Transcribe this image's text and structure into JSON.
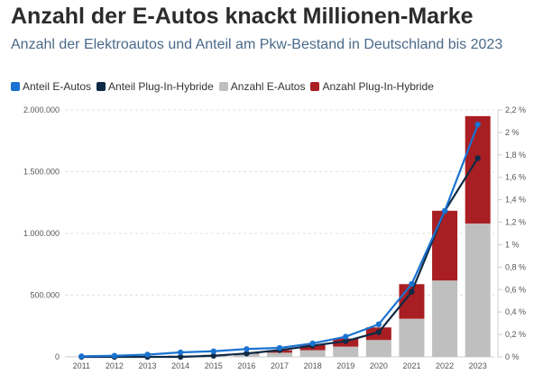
{
  "title": "Anzahl der E-Autos knackt Millionen-Marke",
  "subtitle": "Anzahl der Elektroautos und Anteil am Pkw-Bestand in Deutschland bis 2023",
  "colors": {
    "ev_share": "#1a73d1",
    "phev_share": "#0f2a44",
    "ev_count": "#bfbfbf",
    "phev_count": "#a91e22"
  },
  "chart_data": {
    "type": "bar",
    "stacked": true,
    "categories": [
      "2011",
      "2012",
      "2013",
      "2014",
      "2015",
      "2016",
      "2017",
      "2018",
      "2019",
      "2020",
      "2021",
      "2022",
      "2023"
    ],
    "series": [
      {
        "name": "Anteil E-Autos",
        "kind": "line",
        "axis": "right",
        "color": "#1a73d1",
        "values": [
          0.005,
          0.01,
          0.02,
          0.04,
          0.05,
          0.07,
          0.08,
          0.12,
          0.18,
          0.29,
          0.65,
          1.3,
          2.07
        ]
      },
      {
        "name": "Anteil Plug-In-Hybride",
        "kind": "line",
        "axis": "right",
        "color": "#0f2a44",
        "values": [
          0.0,
          0.0,
          0.0,
          0.0,
          0.01,
          0.03,
          0.06,
          0.1,
          0.14,
          0.22,
          0.58,
          1.3,
          1.77
        ]
      },
      {
        "name": "Anzahl E-Autos",
        "kind": "bar",
        "axis": "left",
        "color": "#bfbfbf",
        "values": [
          2307,
          4541,
          7114,
          12156,
          18948,
          25502,
          34022,
          53861,
          83175,
          136617,
          309083,
          618460,
          1080000
        ]
      },
      {
        "name": "Anzahl Plug-In-Hybride",
        "kind": "bar",
        "axis": "left",
        "color": "#a91e22",
        "values": [
          0,
          0,
          0,
          0,
          0,
          4000,
          20000,
          44000,
          66000,
          102000,
          280000,
          565000,
          870000
        ]
      }
    ],
    "yleft_ticks": [
      "0",
      "500.000",
      "1.000.000",
      "1.500.000",
      "2.000.000"
    ],
    "yleft_lim": [
      0,
      2000000
    ],
    "yright_ticks": [
      "0 %",
      "0,2 %",
      "0,4 %",
      "0,6 %",
      "0,8 %",
      "1 %",
      "1,2 %",
      "1,4 %",
      "1,6 %",
      "1,8 %",
      "2 %",
      "2,2 %"
    ],
    "yright_lim": [
      0,
      2.2
    ],
    "legend_position": "top-left",
    "grid": true
  }
}
